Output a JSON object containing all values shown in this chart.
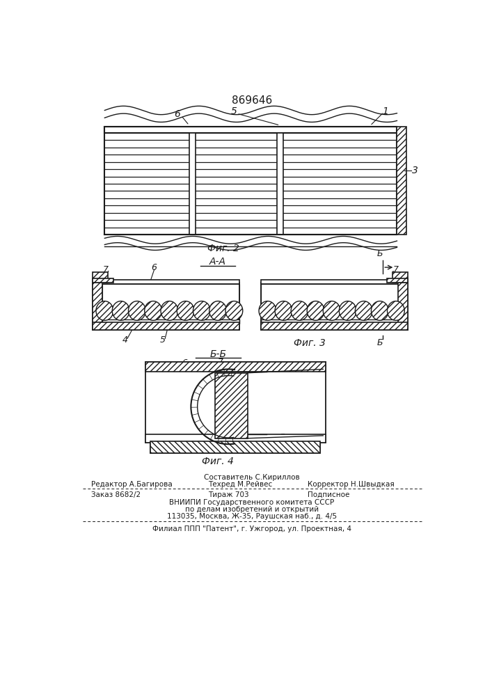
{
  "patent_number": "869646",
  "fig2_label": "Фиг. 2",
  "fig3_label": "Фиг. 3",
  "fig4_label": "Фиг. 4",
  "section_aa": "А-А",
  "section_bb": "Б-Б",
  "bg_color": "#ffffff",
  "line_color": "#1a1a1a"
}
